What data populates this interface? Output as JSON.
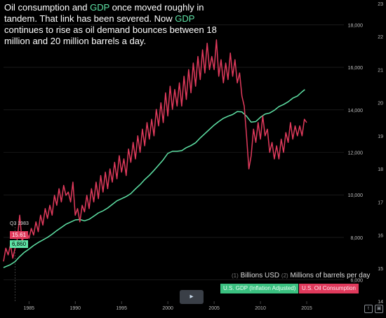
{
  "headline": {
    "part1": "Oil consumption and ",
    "gdp1": "GDP",
    "part2": " once moved roughly in tandem. That link has been severed. Now ",
    "gdp2": "GDP",
    "part3": " continues to rise as oil demand bounces between 18 million and 20 million barrels a day."
  },
  "legend": {
    "units_gdp_num": "(1)",
    "units_gdp": "Billions USD",
    "units_oil_num": "(2)",
    "units_oil": "Millions of barrels per day",
    "gdp_label": "U.S. GDP (Inflation Adjusted)",
    "oil_label": "U.S. Oil Consumption"
  },
  "tooltip": {
    "label": "Q3 1983",
    "oil_value": "15.61",
    "gdp_value": "6,860"
  },
  "controls": {
    "play_glyph": "▸",
    "twitter_glyph": "t",
    "share_glyph": "▣"
  },
  "colors": {
    "gdp": "#5fe3a6",
    "oil": "#e03a5c",
    "background": "#000000",
    "grid": "#2a2a2a"
  },
  "chart_data": {
    "type": "line",
    "title": "",
    "x_ticks": [
      1985,
      1990,
      1995,
      2000,
      2005,
      2010,
      2015
    ],
    "xlim": [
      1982.25,
      2017.5
    ],
    "y_left_ticks": [
      "6,000",
      "8,000",
      "10,000",
      "12,000",
      "14,000",
      "16,000",
      "18,000"
    ],
    "y_left_lim": [
      5000,
      19000
    ],
    "y_right_ticks": [
      "14",
      "15",
      "16",
      "17",
      "18",
      "19",
      "20",
      "21",
      "22",
      "23"
    ],
    "y_right_lim": [
      14,
      23
    ],
    "grid": true,
    "legend_position": "bottom-right",
    "series": [
      {
        "name": "U.S. GDP (Inflation Adjusted)",
        "axis": "left",
        "points": [
          [
            1982.25,
            6580
          ],
          [
            1983.0,
            6720
          ],
          [
            1983.5,
            6860
          ],
          [
            1984.0,
            7100
          ],
          [
            1984.5,
            7300
          ],
          [
            1985.0,
            7450
          ],
          [
            1985.5,
            7620
          ],
          [
            1986.0,
            7760
          ],
          [
            1986.5,
            7880
          ],
          [
            1987.0,
            8000
          ],
          [
            1987.5,
            8150
          ],
          [
            1988.0,
            8320
          ],
          [
            1988.5,
            8470
          ],
          [
            1989.0,
            8620
          ],
          [
            1989.5,
            8720
          ],
          [
            1990.0,
            8820
          ],
          [
            1990.5,
            8840
          ],
          [
            1991.0,
            8780
          ],
          [
            1991.5,
            8850
          ],
          [
            1992.0,
            9000
          ],
          [
            1992.5,
            9150
          ],
          [
            1993.0,
            9250
          ],
          [
            1993.5,
            9380
          ],
          [
            1994.0,
            9550
          ],
          [
            1994.5,
            9720
          ],
          [
            1995.0,
            9820
          ],
          [
            1995.5,
            9920
          ],
          [
            1996.0,
            10060
          ],
          [
            1996.5,
            10280
          ],
          [
            1997.0,
            10480
          ],
          [
            1997.5,
            10720
          ],
          [
            1998.0,
            10920
          ],
          [
            1998.5,
            11150
          ],
          [
            1999.0,
            11400
          ],
          [
            1999.5,
            11650
          ],
          [
            2000.0,
            11950
          ],
          [
            2000.5,
            12050
          ],
          [
            2001.0,
            12050
          ],
          [
            2001.5,
            12080
          ],
          [
            2002.0,
            12220
          ],
          [
            2002.5,
            12320
          ],
          [
            2003.0,
            12450
          ],
          [
            2003.5,
            12680
          ],
          [
            2004.0,
            12880
          ],
          [
            2004.5,
            13080
          ],
          [
            2005.0,
            13280
          ],
          [
            2005.5,
            13450
          ],
          [
            2006.0,
            13600
          ],
          [
            2006.5,
            13700
          ],
          [
            2007.0,
            13780
          ],
          [
            2007.5,
            13920
          ],
          [
            2008.0,
            13900
          ],
          [
            2008.5,
            13700
          ],
          [
            2009.0,
            13420
          ],
          [
            2009.5,
            13450
          ],
          [
            2010.0,
            13650
          ],
          [
            2010.5,
            13800
          ],
          [
            2011.0,
            13850
          ],
          [
            2011.5,
            13980
          ],
          [
            2012.0,
            14150
          ],
          [
            2012.5,
            14250
          ],
          [
            2013.0,
            14380
          ],
          [
            2013.5,
            14550
          ],
          [
            2014.0,
            14650
          ],
          [
            2014.5,
            14850
          ],
          [
            2014.8,
            14950
          ]
        ]
      },
      {
        "name": "U.S. Oil Consumption",
        "axis": "right",
        "points": [
          [
            1982.25,
            15.2
          ],
          [
            1982.5,
            15.6
          ],
          [
            1982.75,
            15.4
          ],
          [
            1983.0,
            15.7
          ],
          [
            1983.25,
            15.3
          ],
          [
            1983.5,
            15.6
          ],
          [
            1983.75,
            15.9
          ],
          [
            1984.0,
            16.6
          ],
          [
            1984.25,
            15.8
          ],
          [
            1984.5,
            16.0
          ],
          [
            1984.75,
            16.1
          ],
          [
            1985.0,
            15.9
          ],
          [
            1985.25,
            16.2
          ],
          [
            1985.5,
            16.0
          ],
          [
            1985.75,
            16.4
          ],
          [
            1986.0,
            16.1
          ],
          [
            1986.25,
            16.6
          ],
          [
            1986.5,
            16.3
          ],
          [
            1986.75,
            16.8
          ],
          [
            1987.0,
            16.5
          ],
          [
            1987.25,
            16.9
          ],
          [
            1987.5,
            16.6
          ],
          [
            1987.75,
            17.2
          ],
          [
            1988.0,
            16.9
          ],
          [
            1988.25,
            17.4
          ],
          [
            1988.5,
            17.0
          ],
          [
            1988.75,
            17.5
          ],
          [
            1989.0,
            17.2
          ],
          [
            1989.25,
            17.3
          ],
          [
            1989.5,
            17.0
          ],
          [
            1989.75,
            17.6
          ],
          [
            1990.0,
            16.6
          ],
          [
            1990.25,
            16.8
          ],
          [
            1990.5,
            16.4
          ],
          [
            1990.75,
            16.9
          ],
          [
            1991.0,
            16.7
          ],
          [
            1991.25,
            17.2
          ],
          [
            1991.5,
            16.8
          ],
          [
            1991.75,
            17.4
          ],
          [
            1992.0,
            17.0
          ],
          [
            1992.25,
            17.6
          ],
          [
            1992.5,
            17.1
          ],
          [
            1992.75,
            17.8
          ],
          [
            1993.0,
            17.3
          ],
          [
            1993.25,
            17.9
          ],
          [
            1993.5,
            17.4
          ],
          [
            1993.75,
            18.0
          ],
          [
            1994.0,
            17.6
          ],
          [
            1994.25,
            18.2
          ],
          [
            1994.5,
            17.7
          ],
          [
            1994.75,
            18.4
          ],
          [
            1995.0,
            17.9
          ],
          [
            1995.25,
            18.3
          ],
          [
            1995.5,
            17.8
          ],
          [
            1995.75,
            18.6
          ],
          [
            1996.0,
            18.2
          ],
          [
            1996.25,
            18.8
          ],
          [
            1996.5,
            18.3
          ],
          [
            1996.75,
            19.0
          ],
          [
            1997.0,
            18.5
          ],
          [
            1997.25,
            19.2
          ],
          [
            1997.5,
            18.7
          ],
          [
            1997.75,
            19.4
          ],
          [
            1998.0,
            18.9
          ],
          [
            1998.25,
            19.5
          ],
          [
            1998.5,
            19.0
          ],
          [
            1998.75,
            19.8
          ],
          [
            1999.0,
            19.3
          ],
          [
            1999.25,
            20.0
          ],
          [
            1999.5,
            19.4
          ],
          [
            1999.75,
            20.3
          ],
          [
            2000.0,
            19.6
          ],
          [
            2000.25,
            20.5
          ],
          [
            2000.5,
            19.8
          ],
          [
            2000.75,
            20.4
          ],
          [
            2001.0,
            19.9
          ],
          [
            2001.25,
            20.6
          ],
          [
            2001.5,
            19.9
          ],
          [
            2001.75,
            20.8
          ],
          [
            2002.0,
            20.1
          ],
          [
            2002.25,
            21.0
          ],
          [
            2002.5,
            20.3
          ],
          [
            2002.75,
            21.2
          ],
          [
            2003.0,
            20.5
          ],
          [
            2003.25,
            21.4
          ],
          [
            2003.5,
            20.7
          ],
          [
            2003.75,
            21.6
          ],
          [
            2004.0,
            20.9
          ],
          [
            2004.25,
            21.8
          ],
          [
            2004.5,
            21.0
          ],
          [
            2004.75,
            21.4
          ],
          [
            2005.0,
            21.0
          ],
          [
            2005.25,
            21.9
          ],
          [
            2005.5,
            20.8
          ],
          [
            2005.75,
            21.3
          ],
          [
            2006.0,
            20.6
          ],
          [
            2006.25,
            21.2
          ],
          [
            2006.5,
            20.7
          ],
          [
            2006.75,
            21.5
          ],
          [
            2007.0,
            20.8
          ],
          [
            2007.25,
            21.3
          ],
          [
            2007.5,
            20.6
          ],
          [
            2007.75,
            20.9
          ],
          [
            2008.0,
            20.2
          ],
          [
            2008.25,
            19.9
          ],
          [
            2008.5,
            19.0
          ],
          [
            2008.75,
            18.0
          ],
          [
            2009.0,
            18.4
          ],
          [
            2009.25,
            19.2
          ],
          [
            2009.5,
            18.8
          ],
          [
            2009.75,
            19.4
          ],
          [
            2010.0,
            18.9
          ],
          [
            2010.25,
            19.6
          ],
          [
            2010.5,
            19.0
          ],
          [
            2010.75,
            19.2
          ],
          [
            2011.0,
            18.5
          ],
          [
            2011.25,
            18.8
          ],
          [
            2011.5,
            18.3
          ],
          [
            2011.75,
            18.7
          ],
          [
            2012.0,
            18.3
          ],
          [
            2012.25,
            18.9
          ],
          [
            2012.5,
            18.5
          ],
          [
            2012.75,
            19.1
          ],
          [
            2013.0,
            18.8
          ],
          [
            2013.25,
            19.4
          ],
          [
            2013.5,
            18.9
          ],
          [
            2013.75,
            19.3
          ],
          [
            2014.0,
            19.0
          ],
          [
            2014.25,
            19.3
          ],
          [
            2014.5,
            19.0
          ],
          [
            2014.75,
            19.5
          ],
          [
            2015.0,
            19.4
          ]
        ]
      }
    ]
  }
}
